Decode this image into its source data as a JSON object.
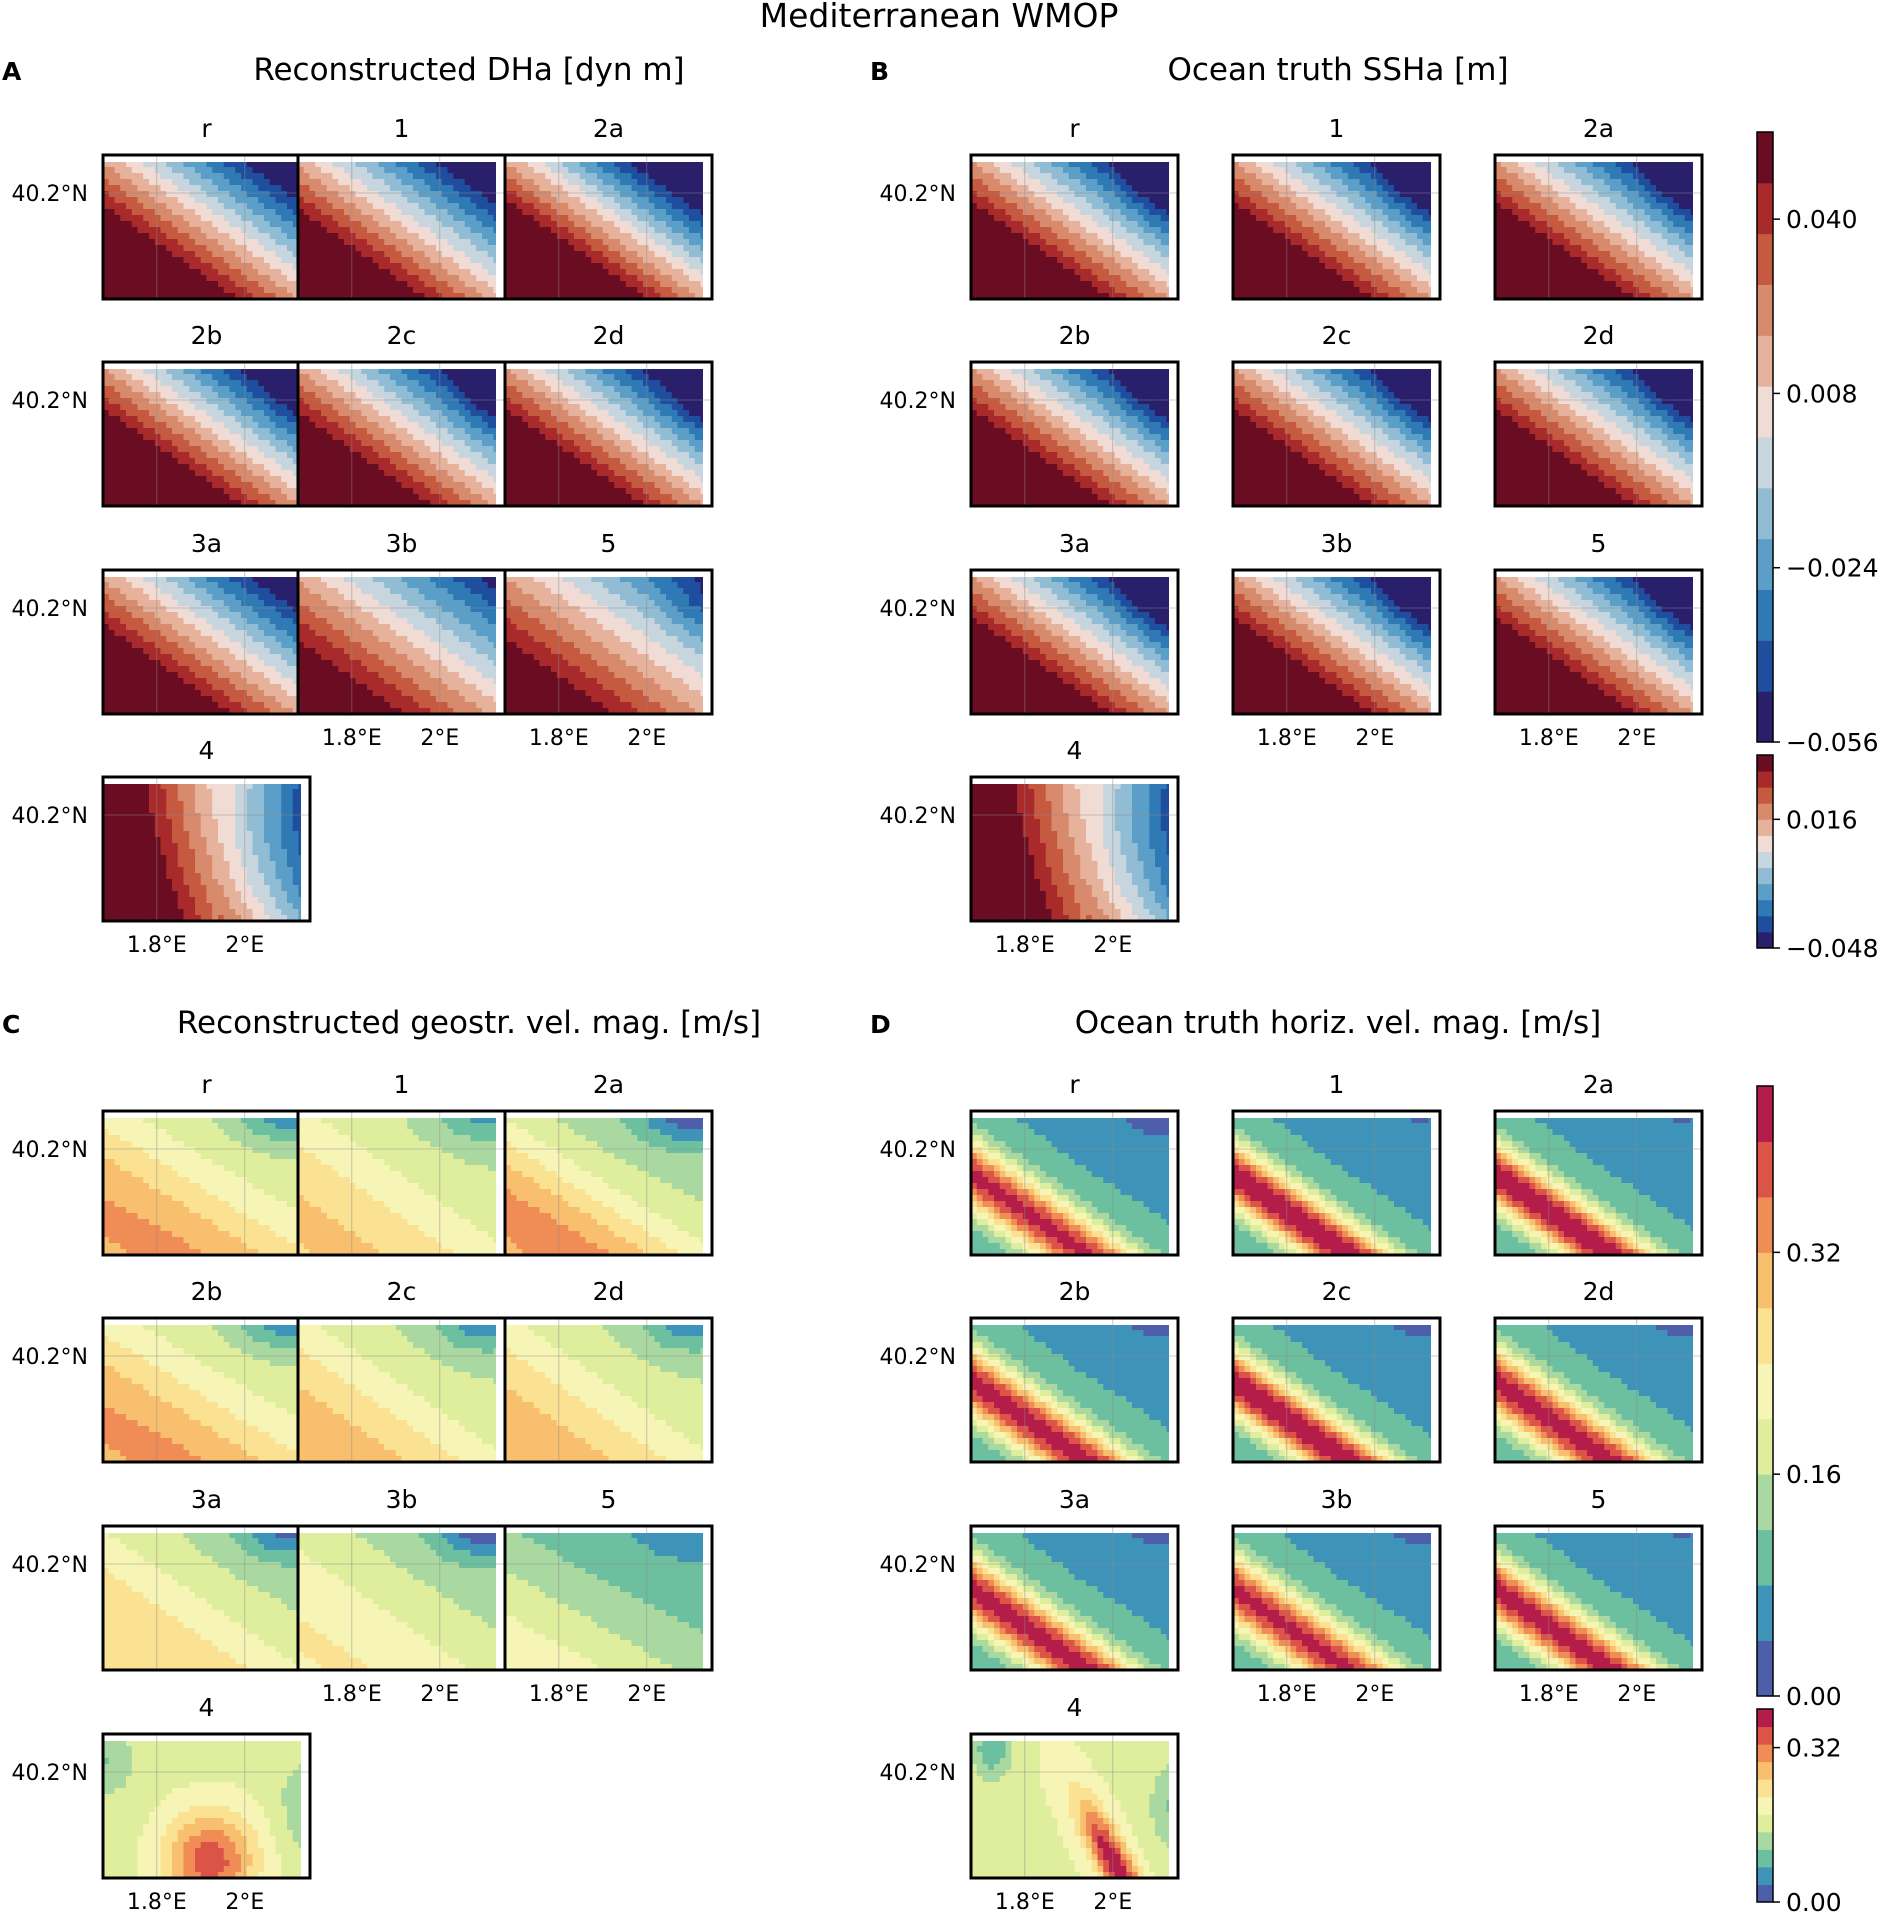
{
  "figure_title": "Mediterranean WMOP",
  "lat_tick": "40.2°N",
  "lon_ticks": [
    "1.8°E",
    "2°E"
  ],
  "panel_letters": [
    "A",
    "B",
    "C",
    "D"
  ],
  "panel_titles": [
    "Reconstructed DHa [dyn m]",
    "Ocean truth SSHa [m]",
    "Reconstructed geostr. vel. mag. [m/s]",
    "Ocean truth horiz. vel. mag. [m/s]"
  ],
  "subplot_labels": [
    "r",
    "1",
    "2a",
    "2b",
    "2c",
    "2d",
    "3a",
    "3b",
    "5",
    "4"
  ],
  "colors": {
    "diverging": [
      "#2a1f6b",
      "#1f4e9e",
      "#2f79b5",
      "#5b9fc8",
      "#90bcd4",
      "#c7d5de",
      "#f0dcd5",
      "#e7b29c",
      "#d88a6d",
      "#c65a40",
      "#a92a2b",
      "#6b0d22"
    ],
    "spectral": [
      "#4d5faa",
      "#3e93b8",
      "#6cbf9f",
      "#a9d9a0",
      "#dfee9c",
      "#f7f5b5",
      "#fbe293",
      "#f8bf6e",
      "#f08c55",
      "#dc5347",
      "#b41d49"
    ]
  },
  "chart_data": [
    {
      "type": "heatmap",
      "panel": "A",
      "title": "Reconstructed DHa [dyn m]",
      "variable": "dynamic height anomaly",
      "units": "dyn m",
      "subplots": [
        "r",
        "1",
        "2a",
        "2b",
        "2c",
        "2d",
        "3a",
        "3b",
        "5",
        "4"
      ],
      "x_ticks": [
        "1.8°E",
        "2°E"
      ],
      "y_ticks": [
        "40.2°N"
      ],
      "pattern": "high values in south-west corner, low values in north-east (diagonal gradient); subplot 4 shows east-west gradient",
      "colorbar": "shared with panel B"
    },
    {
      "type": "heatmap",
      "panel": "B",
      "title": "Ocean truth SSHa [m]",
      "variable": "sea surface height anomaly",
      "units": "m",
      "subplots": [
        "r",
        "1",
        "2a",
        "2b",
        "2c",
        "2d",
        "3a",
        "3b",
        "5",
        "4"
      ],
      "x_ticks": [
        "1.8°E",
        "2°E"
      ],
      "y_ticks": [
        "40.2°N"
      ],
      "colorbar_main": {
        "ticks": [
          0.04,
          0.008,
          -0.024,
          -0.056
        ],
        "tick_labels": [
          "0.040",
          "0.008",
          "−0.024",
          "−0.056"
        ],
        "range": [
          -0.056,
          0.056
        ]
      },
      "colorbar_subplot4": {
        "ticks": [
          0.016,
          -0.048
        ],
        "tick_labels": [
          "0.016",
          "−0.048"
        ],
        "range": [
          -0.048,
          0.048
        ]
      }
    },
    {
      "type": "heatmap",
      "panel": "C",
      "title": "Reconstructed geostr. vel. mag. [m/s]",
      "variable": "geostrophic velocity magnitude",
      "units": "m/s",
      "subplots": [
        "r",
        "1",
        "2a",
        "2b",
        "2c",
        "2d",
        "3a",
        "3b",
        "5",
        "4"
      ],
      "x_ticks": [
        "1.8°E",
        "2°E"
      ],
      "y_ticks": [
        "40.2°N"
      ],
      "colorbar": "shared with panel D"
    },
    {
      "type": "heatmap",
      "panel": "D",
      "title": "Ocean truth horiz. vel. mag. [m/s]",
      "variable": "horizontal velocity magnitude",
      "units": "m/s",
      "subplots": [
        "r",
        "1",
        "2a",
        "2b",
        "2c",
        "2d",
        "3a",
        "3b",
        "5",
        "4"
      ],
      "x_ticks": [
        "1.8°E",
        "2°E"
      ],
      "y_ticks": [
        "40.2°N"
      ],
      "colorbar_main": {
        "ticks": [
          0.32,
          0.16,
          0.0
        ],
        "tick_labels": [
          "0.32",
          "0.16",
          "0.00"
        ],
        "range": [
          0.0,
          0.44
        ]
      },
      "colorbar_subplot4": {
        "ticks": [
          0.32,
          0.0
        ],
        "tick_labels": [
          "0.32",
          "0.00"
        ],
        "range": [
          0.0,
          0.4
        ]
      }
    }
  ]
}
